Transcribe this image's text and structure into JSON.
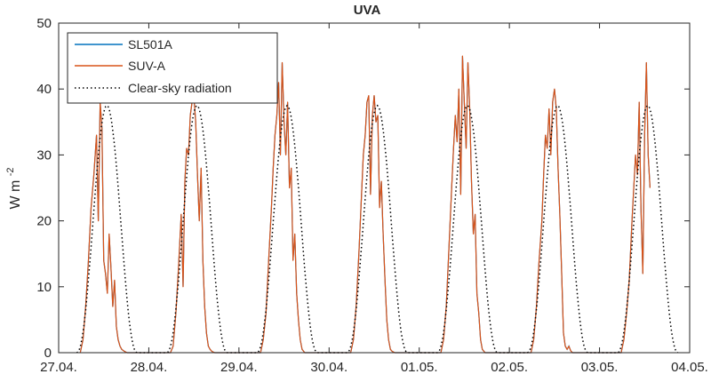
{
  "chart_data": {
    "type": "line",
    "title": "UVA",
    "ylabel": "W m",
    "ylabel_exponent": "-2",
    "xlabel": "",
    "x_ticks": [
      "27.04.",
      "28.04.",
      "29.04.",
      "30.04.",
      "01.05.",
      "02.05.",
      "03.05.",
      "04.05."
    ],
    "x_unit": "days since 27.04.",
    "xlim": [
      0,
      7
    ],
    "ylim": [
      0,
      50
    ],
    "y_ticks": [
      0,
      10,
      20,
      30,
      40,
      50
    ],
    "grid": false,
    "legend_position": "top-left",
    "series": [
      {
        "name": "SL501A",
        "color": "#0072BD",
        "style": "solid",
        "note": "hidden beneath SUV-A trace (nearly identical values)",
        "x": [],
        "y": []
      },
      {
        "name": "SUV-A",
        "color": "#D95319",
        "style": "solid",
        "x": [
          0.24,
          0.27,
          0.3,
          0.33,
          0.36,
          0.39,
          0.42,
          0.44,
          0.46,
          0.48,
          0.5,
          0.52,
          0.54,
          0.56,
          0.58,
          0.6,
          0.62,
          0.64,
          0.66,
          0.68,
          0.7,
          0.73,
          0.76,
          0.8,
          1.24,
          1.27,
          1.3,
          1.33,
          1.36,
          1.38,
          1.4,
          1.42,
          1.44,
          1.46,
          1.48,
          1.5,
          1.52,
          1.54,
          1.56,
          1.58,
          1.6,
          1.62,
          1.64,
          1.66,
          1.68,
          1.7,
          1.73,
          1.76,
          1.8,
          2.24,
          2.27,
          2.3,
          2.33,
          2.36,
          2.38,
          2.4,
          2.42,
          2.44,
          2.46,
          2.48,
          2.5,
          2.52,
          2.54,
          2.56,
          2.58,
          2.6,
          2.62,
          2.64,
          2.66,
          2.68,
          2.7,
          2.73,
          2.76,
          2.8,
          3.24,
          3.27,
          3.3,
          3.33,
          3.36,
          3.38,
          3.4,
          3.42,
          3.44,
          3.46,
          3.48,
          3.5,
          3.52,
          3.54,
          3.56,
          3.58,
          3.6,
          3.62,
          3.64,
          3.66,
          3.68,
          3.7,
          3.73,
          3.76,
          3.8,
          4.24,
          4.27,
          4.3,
          4.33,
          4.36,
          4.38,
          4.4,
          4.42,
          4.44,
          4.46,
          4.48,
          4.5,
          4.52,
          4.54,
          4.56,
          4.58,
          4.6,
          4.62,
          4.64,
          4.66,
          4.68,
          4.7,
          4.73,
          4.76,
          4.8,
          5.24,
          5.27,
          5.3,
          5.33,
          5.36,
          5.38,
          5.4,
          5.42,
          5.44,
          5.46,
          5.48,
          5.5,
          5.52,
          5.54,
          5.56,
          5.58,
          5.6,
          5.62,
          5.64,
          5.66,
          5.68,
          5.7,
          5.73,
          5.76,
          5.8,
          6.24,
          6.27,
          6.3,
          6.33,
          6.36,
          6.38,
          6.4,
          6.42,
          6.44,
          6.46,
          6.48,
          6.5,
          6.52,
          6.54,
          6.56
        ],
        "y": [
          0,
          2,
          7,
          14,
          22,
          27,
          33,
          20,
          38,
          34,
          14,
          12,
          9,
          18,
          13,
          7,
          11,
          4,
          2,
          1,
          0.5,
          0.2,
          0,
          0,
          0,
          1,
          6,
          13,
          21,
          10,
          26,
          31,
          30,
          36,
          38,
          39,
          35,
          27,
          20,
          28,
          14,
          7,
          3,
          1,
          0.5,
          0.2,
          0,
          0,
          0,
          0,
          2,
          6,
          14,
          22,
          28,
          33,
          36,
          41,
          30,
          44,
          35,
          30,
          38,
          25,
          28,
          14,
          18,
          9,
          5,
          2,
          0.5,
          0,
          0,
          0,
          0,
          2,
          7,
          15,
          24,
          30,
          33,
          38,
          39,
          24,
          36,
          39,
          35,
          36,
          22,
          26,
          18,
          11,
          5,
          2,
          0.5,
          0.2,
          0,
          0,
          0,
          0,
          2,
          7,
          16,
          25,
          31,
          36,
          32,
          40,
          24,
          45,
          38,
          31,
          44,
          37,
          26,
          18,
          21,
          9,
          6,
          2,
          0.5,
          0,
          0,
          0,
          0,
          2,
          7,
          14,
          20,
          27,
          33,
          31,
          37,
          30,
          38,
          40,
          37,
          28,
          21,
          12,
          3,
          1,
          0.5,
          1,
          0.3,
          0,
          0,
          0,
          0,
          0,
          2,
          6,
          11,
          20,
          25,
          30,
          27,
          38,
          22,
          12,
          33,
          44,
          30,
          25
        ]
      },
      {
        "name": "Clear-sky radiation",
        "color": "#000000",
        "style": "dotted",
        "peak": 37.5,
        "day_start": 0.2,
        "day_end": 0.87,
        "days": 7
      }
    ]
  }
}
